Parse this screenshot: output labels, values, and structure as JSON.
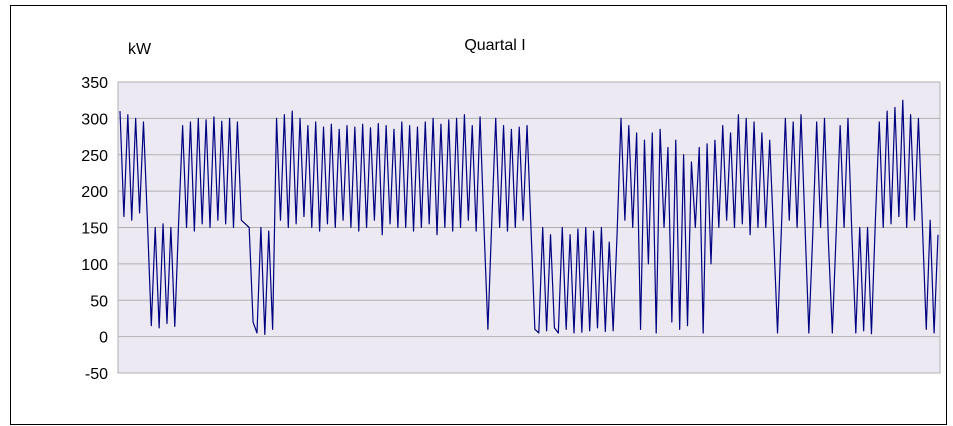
{
  "chart_data": {
    "type": "line",
    "title": "Quartal I",
    "ylabel": "kW",
    "xlabel": "",
    "ylim": [
      -50,
      350
    ],
    "yticks": [
      350,
      300,
      250,
      200,
      150,
      100,
      50,
      0,
      -50
    ],
    "grid": true,
    "legend": "none",
    "colors": {
      "series": "#000080",
      "plot_bg": "#ECE9F3",
      "grid": "#B0B0B0",
      "frame": "#000000"
    },
    "series": [
      {
        "values": [
          310,
          165,
          305,
          160,
          300,
          170,
          295,
          160,
          15,
          150,
          12,
          155,
          18,
          150,
          14,
          160,
          290,
          150,
          295,
          145,
          300,
          155,
          298,
          150,
          302,
          160,
          296,
          155,
          300,
          150,
          295,
          160,
          155,
          150,
          20,
          5,
          150,
          3,
          145,
          10,
          300,
          160,
          305,
          150,
          310,
          155,
          300,
          165,
          290,
          150,
          295,
          145,
          288,
          155,
          292,
          150,
          285,
          160,
          290,
          150,
          288,
          145,
          292,
          150,
          287,
          160,
          293,
          140,
          290,
          155,
          285,
          150,
          295,
          150,
          290,
          145,
          288,
          150,
          295,
          155,
          300,
          140,
          292,
          150,
          298,
          145,
          300,
          150,
          305,
          160,
          290,
          145,
          302,
          150,
          10,
          160,
          300,
          150,
          290,
          145,
          285,
          150,
          288,
          160,
          290,
          150,
          10,
          5,
          150,
          8,
          140,
          12,
          5,
          150,
          10,
          140,
          5,
          148,
          6,
          150,
          8,
          145,
          12,
          150,
          7,
          130,
          8,
          140,
          300,
          160,
          290,
          150,
          280,
          10,
          270,
          100,
          280,
          5,
          285,
          150,
          260,
          20,
          270,
          10,
          250,
          15,
          240,
          150,
          260,
          5,
          265,
          100,
          270,
          150,
          290,
          160,
          280,
          150,
          305,
          155,
          300,
          140,
          295,
          150,
          280,
          150,
          270,
          140,
          5,
          150,
          300,
          160,
          295,
          150,
          305,
          155,
          5,
          140,
          295,
          150,
          300,
          130,
          5,
          145,
          290,
          150,
          300,
          140,
          5,
          150,
          8,
          150,
          4,
          160,
          295,
          150,
          310,
          155,
          315,
          165,
          325,
          150,
          305,
          160,
          300,
          155,
          10,
          160,
          5,
          140
        ]
      }
    ]
  }
}
